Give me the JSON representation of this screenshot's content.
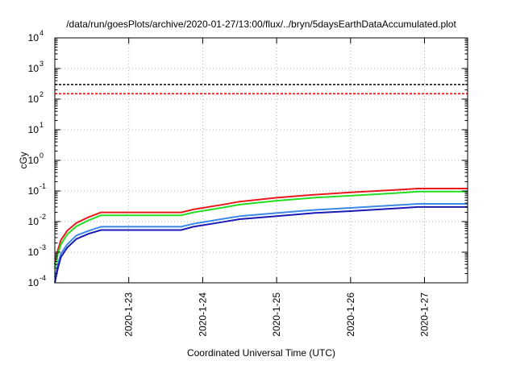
{
  "chart_data": {
    "type": "line",
    "title": "/data/run/goesPlots/archive/2020-01-27/13:00/flux/../bryn/5daysEarthDataAccumulated.plot",
    "xlabel": "Coordinated Universal Time (UTC)",
    "ylabel": "cGy",
    "x_scale": "date",
    "y_scale": "log",
    "xlim": [
      "2020-01-22T00:00",
      "2020-01-27T14:00"
    ],
    "ylim": [
      0.0001,
      10000
    ],
    "x_ticks": [
      "2020-1-23",
      "2020-1-24",
      "2020-1-25",
      "2020-1-26",
      "2020-1-27"
    ],
    "y_ticks": [
      {
        "base": "10",
        "exp": "-4",
        "value": 0.0001
      },
      {
        "base": "10",
        "exp": "-3",
        "value": 0.001
      },
      {
        "base": "10",
        "exp": "-2",
        "value": 0.01
      },
      {
        "base": "10",
        "exp": "-1",
        "value": 0.1
      },
      {
        "base": "10",
        "exp": "0",
        "value": 1
      },
      {
        "base": "10",
        "exp": "1",
        "value": 10
      },
      {
        "base": "10",
        "exp": "2",
        "value": 100
      },
      {
        "base": "10",
        "exp": "3",
        "value": 1000
      },
      {
        "base": "10",
        "exp": "4",
        "value": 10000
      }
    ],
    "grid": true,
    "reference_lines": [
      {
        "value": 300,
        "color": "#000000",
        "style": "dashed"
      },
      {
        "value": 150,
        "color": "#ff0000",
        "style": "dashed"
      }
    ],
    "series": [
      {
        "color": "#e8191b",
        "points": [
          [
            "2020-01-22T00:00",
            0.0004
          ],
          [
            "2020-01-22T01:00",
            0.0012
          ],
          [
            "2020-01-22T02:00",
            0.0025
          ],
          [
            "2020-01-22T04:00",
            0.005
          ],
          [
            "2020-01-22T07:00",
            0.009
          ],
          [
            "2020-01-22T11:00",
            0.014
          ],
          [
            "2020-01-22T15:00",
            0.02
          ],
          [
            "2020-01-23T17:00",
            0.02
          ],
          [
            "2020-01-23T21:00",
            0.025
          ],
          [
            "2020-01-24T06:00",
            0.035
          ],
          [
            "2020-01-24T12:00",
            0.045
          ],
          [
            "2020-01-25T00:00",
            0.06
          ],
          [
            "2020-01-25T12:00",
            0.075
          ],
          [
            "2020-01-26T00:00",
            0.09
          ],
          [
            "2020-01-26T12:00",
            0.105
          ],
          [
            "2020-01-26T22:00",
            0.12
          ],
          [
            "2020-01-27T14:00",
            0.12
          ]
        ]
      },
      {
        "color": "#22dd22",
        "points": [
          [
            "2020-01-22T00:00",
            0.0003
          ],
          [
            "2020-01-22T01:00",
            0.0009
          ],
          [
            "2020-01-22T02:00",
            0.0018
          ],
          [
            "2020-01-22T04:00",
            0.0038
          ],
          [
            "2020-01-22T07:00",
            0.007
          ],
          [
            "2020-01-22T11:00",
            0.011
          ],
          [
            "2020-01-22T15:00",
            0.016
          ],
          [
            "2020-01-23T17:00",
            0.016
          ],
          [
            "2020-01-23T21:00",
            0.02
          ],
          [
            "2020-01-24T06:00",
            0.028
          ],
          [
            "2020-01-24T12:00",
            0.036
          ],
          [
            "2020-01-25T00:00",
            0.048
          ],
          [
            "2020-01-25T12:00",
            0.06
          ],
          [
            "2020-01-26T00:00",
            0.07
          ],
          [
            "2020-01-26T12:00",
            0.082
          ],
          [
            "2020-01-26T22:00",
            0.095
          ],
          [
            "2020-01-27T14:00",
            0.095
          ]
        ]
      },
      {
        "color": "#3a88e8",
        "points": [
          [
            "2020-01-22T00:00",
            0.00015
          ],
          [
            "2020-01-22T01:00",
            0.0004
          ],
          [
            "2020-01-22T02:00",
            0.0009
          ],
          [
            "2020-01-22T04:00",
            0.0018
          ],
          [
            "2020-01-22T07:00",
            0.0035
          ],
          [
            "2020-01-22T11:00",
            0.005
          ],
          [
            "2020-01-22T15:00",
            0.0068
          ],
          [
            "2020-01-23T17:00",
            0.0068
          ],
          [
            "2020-01-23T21:00",
            0.0085
          ],
          [
            "2020-01-24T06:00",
            0.012
          ],
          [
            "2020-01-24T12:00",
            0.015
          ],
          [
            "2020-01-25T00:00",
            0.019
          ],
          [
            "2020-01-25T12:00",
            0.024
          ],
          [
            "2020-01-26T00:00",
            0.028
          ],
          [
            "2020-01-26T12:00",
            0.033
          ],
          [
            "2020-01-26T22:00",
            0.038
          ],
          [
            "2020-01-27T14:00",
            0.038
          ]
        ]
      },
      {
        "color": "#1a1ab5",
        "points": [
          [
            "2020-01-22T00:00",
            0.0001
          ],
          [
            "2020-01-22T01:00",
            0.0003
          ],
          [
            "2020-01-22T02:00",
            0.0007
          ],
          [
            "2020-01-22T04:00",
            0.0014
          ],
          [
            "2020-01-22T07:00",
            0.0027
          ],
          [
            "2020-01-22T11:00",
            0.004
          ],
          [
            "2020-01-22T15:00",
            0.0053
          ],
          [
            "2020-01-23T17:00",
            0.0053
          ],
          [
            "2020-01-23T21:00",
            0.0068
          ],
          [
            "2020-01-24T06:00",
            0.0095
          ],
          [
            "2020-01-24T12:00",
            0.012
          ],
          [
            "2020-01-25T00:00",
            0.015
          ],
          [
            "2020-01-25T12:00",
            0.019
          ],
          [
            "2020-01-26T00:00",
            0.022
          ],
          [
            "2020-01-26T12:00",
            0.026
          ],
          [
            "2020-01-26T22:00",
            0.03
          ],
          [
            "2020-01-27T14:00",
            0.03
          ]
        ]
      }
    ]
  }
}
